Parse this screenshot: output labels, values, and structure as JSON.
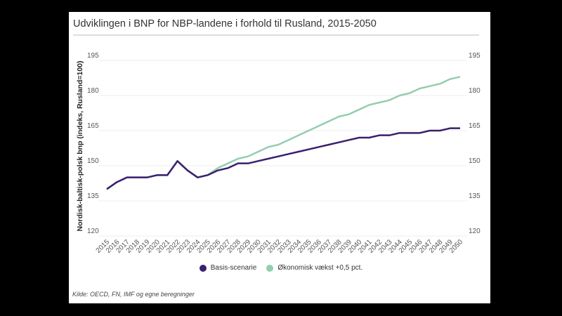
{
  "chart_data": {
    "type": "line",
    "title": "Udviklingen i BNP for NBP-landene i forhold til Rusland, 2015-2050",
    "ylabel": "Nordisk-baltisk-polsk bnp (indeks, Rusland=100)",
    "xlabel": "",
    "ylim": [
      120,
      195
    ],
    "yticks": [
      120,
      135,
      150,
      165,
      180,
      195
    ],
    "grid": true,
    "legend_position": "bottom",
    "x": [
      2015,
      2016,
      2017,
      2018,
      2019,
      2020,
      2021,
      2022,
      2023,
      2024,
      2025,
      2026,
      2027,
      2028,
      2029,
      2030,
      2031,
      2032,
      2033,
      2034,
      2035,
      2036,
      2037,
      2038,
      2039,
      2040,
      2041,
      2042,
      2043,
      2044,
      2045,
      2046,
      2047,
      2048,
      2049,
      2050
    ],
    "series": [
      {
        "name": "Økonomisk vækst +0,5 pct.",
        "color": "#94cdb0",
        "values": [
          140,
          143,
          145,
          145,
          145,
          146,
          146,
          152,
          148,
          145,
          146,
          149,
          151,
          153,
          154,
          156,
          158,
          159,
          161,
          163,
          165,
          167,
          169,
          171,
          172,
          174,
          176,
          177,
          178,
          180,
          181,
          183,
          184,
          185,
          187,
          188
        ]
      },
      {
        "name": "Basis-scenarie",
        "color": "#3b1f6e",
        "values": [
          140,
          143,
          145,
          145,
          145,
          146,
          146,
          152,
          148,
          145,
          146,
          148,
          149,
          151,
          151,
          152,
          153,
          154,
          155,
          156,
          157,
          158,
          159,
          160,
          161,
          162,
          162,
          163,
          163,
          164,
          164,
          164,
          165,
          165,
          166,
          166
        ]
      }
    ],
    "source": "Kilde: OECD, FN, IMF og egne beregninger"
  }
}
